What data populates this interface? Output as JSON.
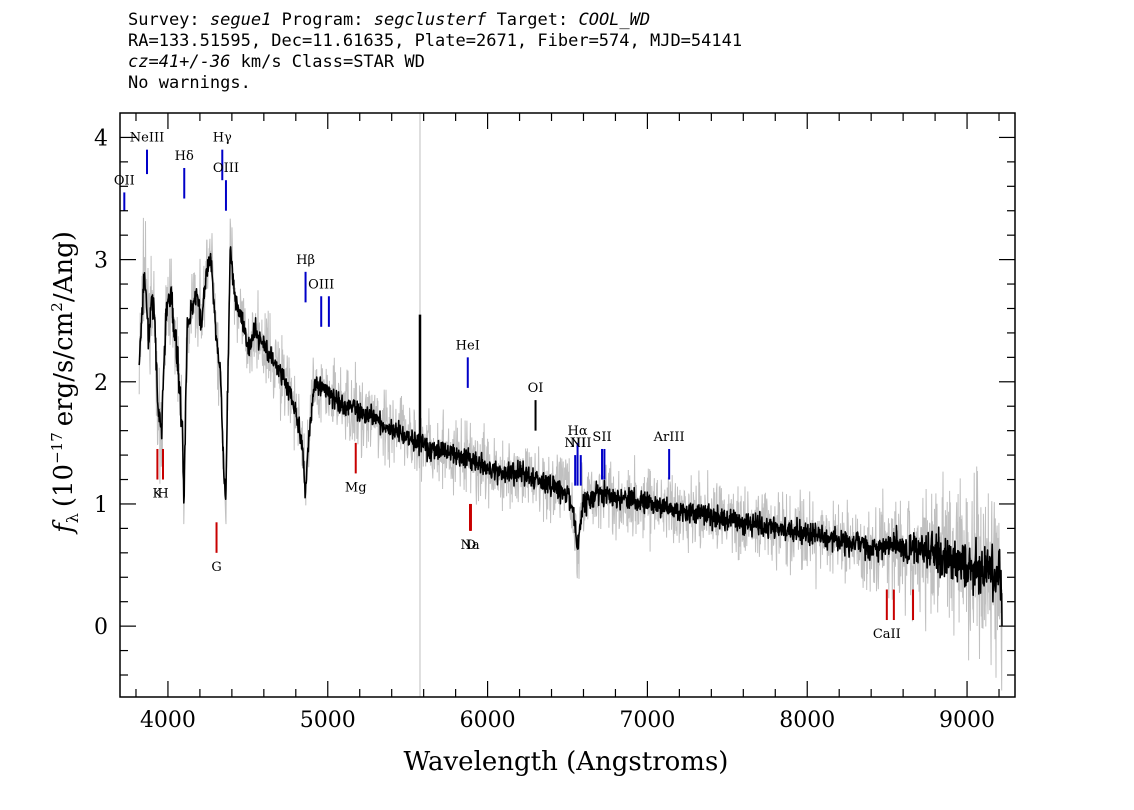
{
  "header": {
    "line1": {
      "survey_label": "Survey:",
      "survey": "segue1",
      "program_label": "Program:",
      "program": "segclusterf",
      "target_label": "Target:",
      "target": "COOL_WD"
    },
    "line2": "RA=133.51595, Dec=11.61635, Plate=2671, Fiber=574, MJD=54141",
    "line3": {
      "cz": "cz=41+/-36",
      "rest": "km/s Class=STAR WD"
    },
    "line4": "No warnings."
  },
  "chart_data": {
    "type": "line",
    "xlabel": "Wavelength (Angstroms)",
    "ylabel": "f_λ (10^-17 erg/s/cm^2/Ang)",
    "ylabel_parts": {
      "f": "f",
      "lambda": "λ",
      "open": "(10",
      "exp1": "−17",
      "mid": "erg/s/cm",
      "exp2": "2",
      "close": "/Ang)"
    },
    "xlim": [
      3700,
      9300
    ],
    "ylim": [
      -0.58,
      4.2
    ],
    "xticks": [
      "4000",
      "5000",
      "6000",
      "7000",
      "8000",
      "9000"
    ],
    "xtick_values": [
      4000,
      5000,
      6000,
      7000,
      8000,
      9000
    ],
    "yticks": [
      "0",
      "1",
      "2",
      "3",
      "4"
    ],
    "ytick_values": [
      0,
      1,
      2,
      3,
      4
    ],
    "series": [
      {
        "role": "flux",
        "color": "#000000",
        "x": [
          3820,
          3850,
          3880,
          3910,
          3940,
          3960,
          3990,
          4020,
          4060,
          4090,
          4100,
          4120,
          4150,
          4180,
          4210,
          4240,
          4270,
          4300,
          4330,
          4340,
          4360,
          4390,
          4420,
          4460,
          4500,
          4550,
          4600,
          4650,
          4700,
          4750,
          4800,
          4840,
          4861,
          4880,
          4920,
          4960,
          5000,
          5050,
          5100,
          5150,
          5200,
          5250,
          5300,
          5350,
          5400,
          5450,
          5500,
          5580,
          5650,
          5700,
          5800,
          5900,
          6000,
          6100,
          6200,
          6300,
          6400,
          6500,
          6540,
          6563,
          6590,
          6650,
          6700,
          6800,
          6900,
          7000,
          7200,
          7400,
          7600,
          7800,
          8000,
          8200,
          8400,
          8600,
          8800,
          9000,
          9100,
          9150,
          9180,
          9200,
          9220
        ],
        "y": [
          2.1,
          2.9,
          2.4,
          2.7,
          1.7,
          1.6,
          2.6,
          2.7,
          2.2,
          1.6,
          1.0,
          2.4,
          2.6,
          2.7,
          2.5,
          2.9,
          3.0,
          2.4,
          2.0,
          1.6,
          0.95,
          3.1,
          2.7,
          2.5,
          2.3,
          2.4,
          2.3,
          2.2,
          2.1,
          1.95,
          1.75,
          1.5,
          1.1,
          1.55,
          2.0,
          1.95,
          1.9,
          1.85,
          1.8,
          1.8,
          1.75,
          1.7,
          1.7,
          1.65,
          1.6,
          1.6,
          1.55,
          1.5,
          1.45,
          1.45,
          1.4,
          1.35,
          1.3,
          1.25,
          1.25,
          1.2,
          1.15,
          1.1,
          0.9,
          0.6,
          1.0,
          1.05,
          1.1,
          1.05,
          1.05,
          1.0,
          0.95,
          0.9,
          0.85,
          0.8,
          0.75,
          0.7,
          0.65,
          0.65,
          0.6,
          0.5,
          0.45,
          0.5,
          0.3,
          0.55,
          0.1
        ]
      }
    ],
    "spikes": [
      {
        "x": 5577,
        "y": 2.55,
        "color": "#000000"
      }
    ],
    "sky_line": {
      "x": 5577,
      "color": "#c0c0c0"
    },
    "noise_color": "#c0c0c0",
    "emission_lines": [
      {
        "label": "OII",
        "x": 3727,
        "y_low": 3.4,
        "y_high": 3.55,
        "color": "#0000c8"
      },
      {
        "label": "NeIII",
        "x": 3869,
        "y_low": 3.7,
        "y_high": 3.9,
        "color": "#0000c8"
      },
      {
        "label": "Hδ",
        "x": 4102,
        "y_low": 3.5,
        "y_high": 3.75,
        "color": "#0000c8"
      },
      {
        "label": "Hγ",
        "x": 4340,
        "y_low": 3.65,
        "y_high": 3.9,
        "color": "#0000c8"
      },
      {
        "label": "OIII",
        "x": 4363,
        "y_low": 3.4,
        "y_high": 3.65,
        "color": "#0000c8"
      },
      {
        "label": "Hβ",
        "x": 4861,
        "y_low": 2.65,
        "y_high": 2.9,
        "color": "#0000c8"
      },
      {
        "label": "OIII",
        "x": 4959,
        "y_low": 2.45,
        "y_high": 2.7,
        "color": "#0000c8"
      },
      {
        "label": "",
        "x": 5007,
        "y_low": 2.45,
        "y_high": 2.7,
        "color": "#0000c8"
      },
      {
        "label": "HeI",
        "x": 5876,
        "y_low": 1.95,
        "y_high": 2.2,
        "color": "#0000c8"
      },
      {
        "label": "OI",
        "x": 6300,
        "y_low": 1.6,
        "y_high": 1.85,
        "color": "#000000"
      },
      {
        "label": "NII",
        "x": 6548,
        "y_low": 1.15,
        "y_high": 1.4,
        "color": "#0000c8"
      },
      {
        "label": "Hα",
        "x": 6563,
        "y_low": 1.15,
        "y_high": 1.5,
        "color": "#0000c8"
      },
      {
        "label": "NII",
        "x": 6583,
        "y_low": 1.15,
        "y_high": 1.4,
        "color": "#0000c8"
      },
      {
        "label": "SII",
        "x": 6716,
        "y_low": 1.2,
        "y_high": 1.45,
        "color": "#0000c8"
      },
      {
        "label": "",
        "x": 6731,
        "y_low": 1.2,
        "y_high": 1.45,
        "color": "#0000c8"
      },
      {
        "label": "ArIII",
        "x": 7136,
        "y_low": 1.2,
        "y_high": 1.45,
        "color": "#0000c8"
      }
    ],
    "absorption_lines": [
      {
        "label": "K",
        "x": 3934,
        "y_low": 1.2,
        "y_high": 1.45,
        "color": "#c80000"
      },
      {
        "label": "H",
        "x": 3969,
        "y_low": 1.2,
        "y_high": 1.45,
        "color": "#c80000"
      },
      {
        "label": "G",
        "x": 4304,
        "y_low": 0.6,
        "y_high": 0.85,
        "color": "#c80000"
      },
      {
        "label": "Mg",
        "x": 5175,
        "y_low": 1.25,
        "y_high": 1.5,
        "color": "#c80000"
      },
      {
        "label": "Na",
        "x": 5890,
        "y_low": 0.78,
        "y_high": 1.0,
        "color": "#c80000"
      },
      {
        "label": "D",
        "x": 5896,
        "y_low": 0.78,
        "y_high": 1.0,
        "color": "#c80000"
      },
      {
        "label": "CaII",
        "x": 8498,
        "y_low": 0.05,
        "y_high": 0.3,
        "color": "#c80000"
      },
      {
        "label": "",
        "x": 8542,
        "y_low": 0.05,
        "y_high": 0.3,
        "color": "#c80000"
      },
      {
        "label": "",
        "x": 8662,
        "y_low": 0.05,
        "y_high": 0.3,
        "color": "#c80000"
      }
    ]
  }
}
